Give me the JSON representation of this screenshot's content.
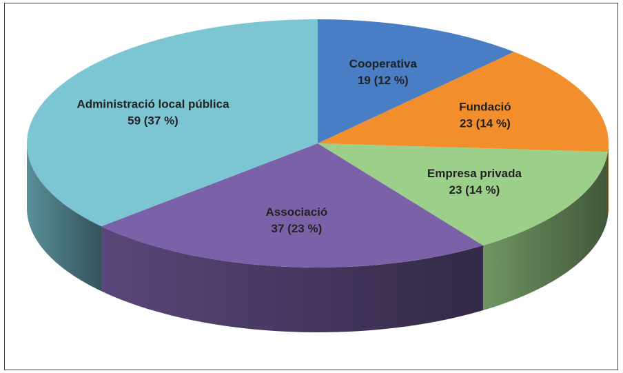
{
  "chart_data": {
    "type": "pie",
    "title": "",
    "slices": [
      {
        "label": "Cooperativa",
        "value": 19,
        "percent_label": "19 (12 %)",
        "color": "#4A7EC4"
      },
      {
        "label": "Fundació",
        "value": 23,
        "percent_label": "23 (14 %)",
        "color": "#F28E2B"
      },
      {
        "label": "Empresa privada",
        "value": 23,
        "percent_label": "23 (14 %)",
        "color": "#9BCF8A"
      },
      {
        "label": "Associació",
        "value": 37,
        "percent_label": "37 (23 %)",
        "color": "#7B62A8"
      },
      {
        "label": "Administració local pública",
        "value": 59,
        "percent_label": "59 (37 %)",
        "color": "#7CC6D4"
      }
    ]
  }
}
